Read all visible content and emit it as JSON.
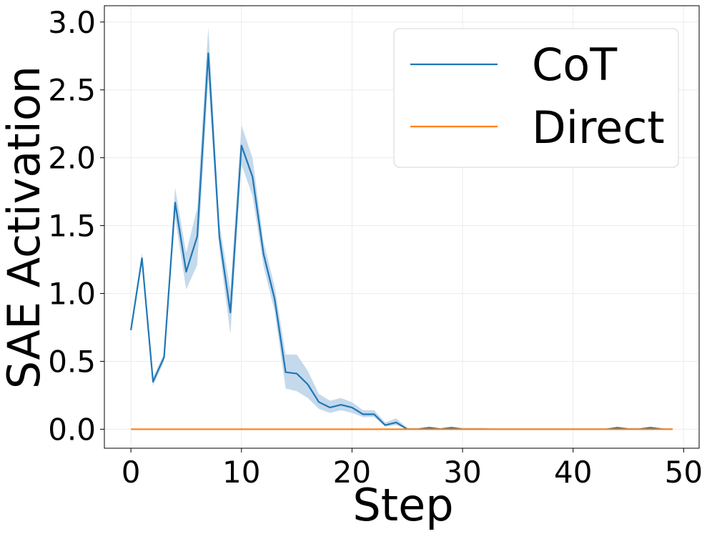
{
  "chart_data": {
    "type": "line",
    "title": "",
    "xlabel": "Step",
    "ylabel": "SAE Activation",
    "xlim": [
      -2.4,
      51.4
    ],
    "ylim": [
      -0.14,
      3.12
    ],
    "xticks": [
      0,
      10,
      20,
      30,
      40,
      50
    ],
    "yticks": [
      0.0,
      0.5,
      1.0,
      1.5,
      2.0,
      2.5,
      3.0
    ],
    "xtick_labels": [
      "0",
      "10",
      "20",
      "30",
      "40",
      "50"
    ],
    "ytick_labels": [
      "0.0",
      "0.5",
      "1.0",
      "1.5",
      "2.0",
      "2.5",
      "3.0"
    ],
    "grid": true,
    "legend_position": "top-right",
    "x": [
      0,
      1,
      2,
      3,
      4,
      5,
      6,
      7,
      8,
      9,
      10,
      11,
      12,
      13,
      14,
      15,
      16,
      17,
      18,
      19,
      20,
      21,
      22,
      23,
      24,
      25,
      26,
      27,
      28,
      29,
      30,
      31,
      32,
      33,
      34,
      35,
      36,
      37,
      38,
      39,
      40,
      41,
      42,
      43,
      44,
      45,
      46,
      47,
      48,
      49
    ],
    "series": [
      {
        "name": "CoT",
        "color": "#1f77b4",
        "band_color": "#c5d9ec",
        "values": [
          0.73,
          1.26,
          0.35,
          0.53,
          1.67,
          1.16,
          1.42,
          2.77,
          1.42,
          0.86,
          2.09,
          1.86,
          1.29,
          0.96,
          0.42,
          0.41,
          0.33,
          0.2,
          0.16,
          0.18,
          0.16,
          0.11,
          0.11,
          0.03,
          0.05,
          0.0,
          0.0,
          0.01,
          0.0,
          0.01,
          0.0,
          0.0,
          0.0,
          0.0,
          0.0,
          0.0,
          0.0,
          0.0,
          0.0,
          0.0,
          0.0,
          0.0,
          0.0,
          0.0,
          0.01,
          0.0,
          0.0,
          0.01,
          0.0,
          0.0
        ],
        "lower": [
          0.73,
          1.22,
          0.32,
          0.5,
          1.56,
          1.03,
          1.21,
          2.58,
          1.33,
          0.7,
          1.95,
          1.72,
          1.2,
          0.87,
          0.3,
          0.28,
          0.23,
          0.15,
          0.12,
          0.14,
          0.12,
          0.09,
          0.09,
          0.02,
          0.03,
          0.0,
          0.0,
          0.0,
          0.0,
          0.0,
          0.0,
          0.0,
          0.0,
          0.0,
          0.0,
          0.0,
          0.0,
          0.0,
          0.0,
          0.0,
          0.0,
          0.0,
          0.0,
          0.0,
          0.0,
          0.0,
          0.0,
          0.0,
          0.0,
          0.0
        ],
        "upper": [
          0.73,
          1.3,
          0.38,
          0.56,
          1.78,
          1.3,
          1.63,
          2.96,
          1.52,
          1.02,
          2.24,
          2.0,
          1.38,
          1.05,
          0.55,
          0.55,
          0.43,
          0.26,
          0.21,
          0.23,
          0.2,
          0.14,
          0.14,
          0.05,
          0.08,
          0.01,
          0.01,
          0.02,
          0.01,
          0.02,
          0.01,
          0.01,
          0.01,
          0.0,
          0.0,
          0.0,
          0.0,
          0.0,
          0.0,
          0.0,
          0.0,
          0.0,
          0.0,
          0.0,
          0.02,
          0.01,
          0.01,
          0.02,
          0.01,
          0.0
        ]
      },
      {
        "name": "Direct",
        "color": "#ff7f0e",
        "values": [
          0,
          0,
          0,
          0,
          0,
          0,
          0,
          0,
          0,
          0,
          0,
          0,
          0,
          0,
          0,
          0,
          0,
          0,
          0,
          0,
          0,
          0,
          0,
          0,
          0,
          0,
          0,
          0,
          0,
          0,
          0,
          0,
          0,
          0,
          0,
          0,
          0,
          0,
          0,
          0,
          0,
          0,
          0,
          0,
          0,
          0,
          0,
          0,
          0,
          0
        ]
      }
    ]
  }
}
